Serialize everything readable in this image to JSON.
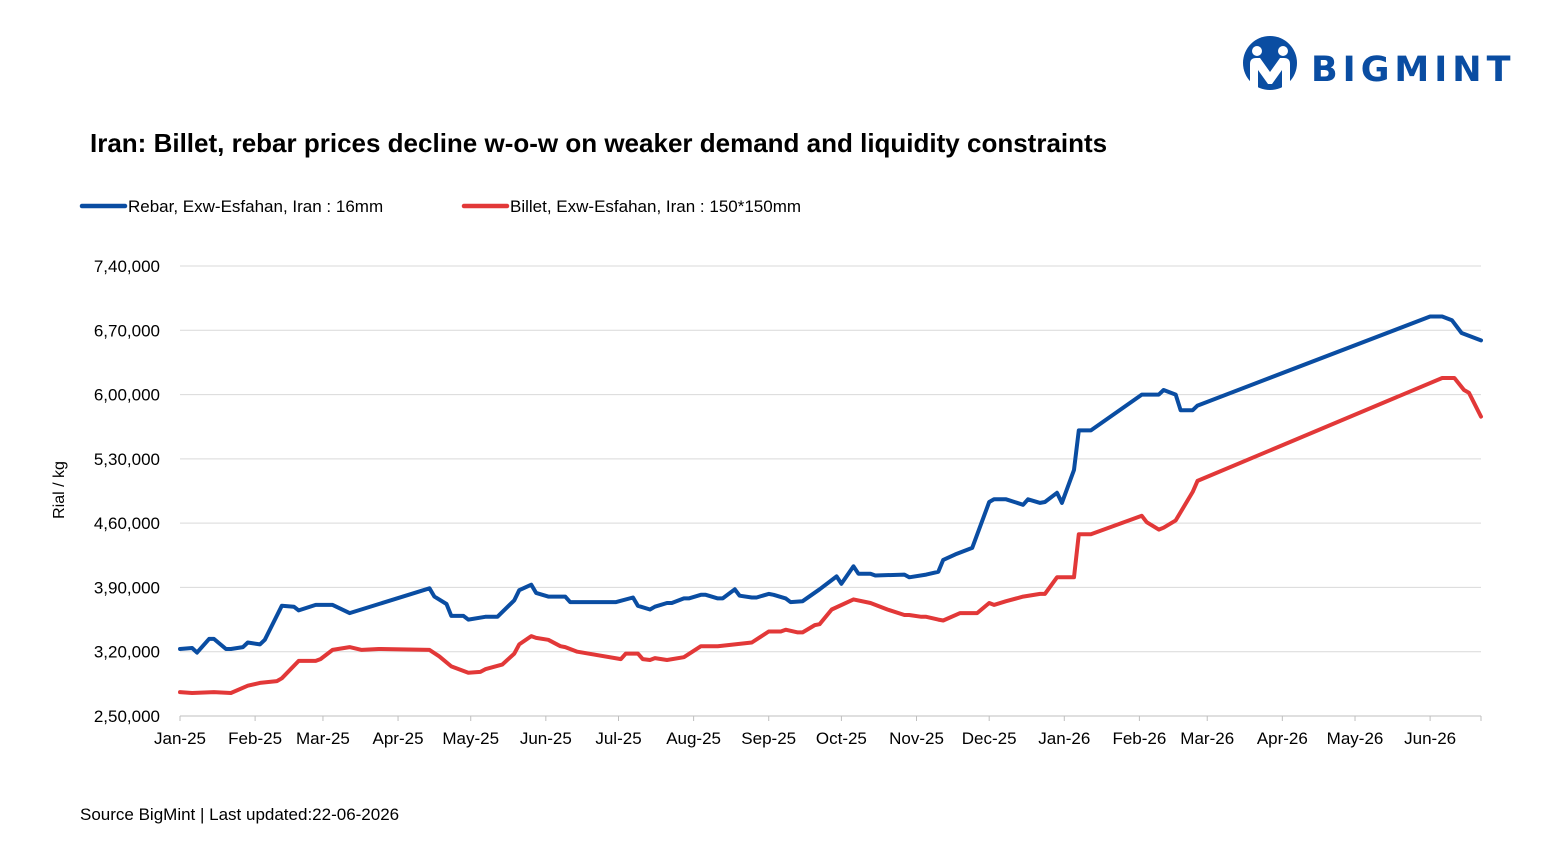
{
  "colors": {
    "rebar": "#0a4da2",
    "billet": "#e23838",
    "brand": "#0a4da2",
    "grid": "#d9d9d9",
    "axis": "#bfbfbf"
  },
  "brand": {
    "name": "BIGMINT",
    "logo_icon": "bigmint-logo-icon"
  },
  "source": "Source BigMint | Last updated:22-06-2026",
  "chart_data": {
    "type": "line",
    "title": "Iran: Billet, rebar prices decline w-o-w on weaker demand and liquidity constraints",
    "xlabel": "",
    "ylabel": "Rial / kg",
    "ylim": [
      250000,
      740000
    ],
    "yticks": [
      250000,
      320000,
      390000,
      460000,
      530000,
      600000,
      670000,
      740000
    ],
    "ytick_labels": [
      "2,50,000",
      "3,20,000",
      "3,90,000",
      "4,60,000",
      "5,30,000",
      "6,00,000",
      "6,70,000",
      "7,40,000"
    ],
    "xlim": [
      "2025-01-01",
      "2026-06-22"
    ],
    "xticks": [
      "2025-01-01",
      "2025-02-01",
      "2025-03-01",
      "2025-04-01",
      "2025-05-01",
      "2025-06-01",
      "2025-07-01",
      "2025-08-01",
      "2025-09-01",
      "2025-10-01",
      "2025-11-01",
      "2025-12-01",
      "2026-01-01",
      "2026-02-01",
      "2026-03-01",
      "2026-04-01",
      "2026-05-01",
      "2026-06-01"
    ],
    "xtick_labels": [
      "Jan-25",
      "Feb-25",
      "Mar-25",
      "Apr-25",
      "May-25",
      "Jun-25",
      "Jul-25",
      "Aug-25",
      "Sep-25",
      "Oct-25",
      "Nov-25",
      "Dec-25",
      "Jan-26",
      "Feb-26",
      "Mar-26",
      "Apr-26",
      "May-26",
      "Jun-26"
    ],
    "grid": "horizontal",
    "legend": "top-left",
    "series": [
      {
        "name": "Rebar, Exw-Esfahan, Iran : 16mm",
        "color": "#0a4da2",
        "points": [
          [
            "2025-01-01",
            323000
          ],
          [
            "2025-01-06",
            324000
          ],
          [
            "2025-01-08",
            319000
          ],
          [
            "2025-01-13",
            334000
          ],
          [
            "2025-01-15",
            334000
          ],
          [
            "2025-01-20",
            323000
          ],
          [
            "2025-01-22",
            323000
          ],
          [
            "2025-01-27",
            325000
          ],
          [
            "2025-01-29",
            330000
          ],
          [
            "2025-02-03",
            328000
          ],
          [
            "2025-02-05",
            333000
          ],
          [
            "2025-02-12",
            370000
          ],
          [
            "2025-02-17",
            369000
          ],
          [
            "2025-02-19",
            365000
          ],
          [
            "2025-02-26",
            371000
          ],
          [
            "2025-03-05",
            371000
          ],
          [
            "2025-03-12",
            362000
          ],
          [
            "2025-04-14",
            389000
          ],
          [
            "2025-04-16",
            380000
          ],
          [
            "2025-04-21",
            372000
          ],
          [
            "2025-04-23",
            359000
          ],
          [
            "2025-04-28",
            359000
          ],
          [
            "2025-04-30",
            355000
          ],
          [
            "2025-05-07",
            358000
          ],
          [
            "2025-05-12",
            358000
          ],
          [
            "2025-05-19",
            376000
          ],
          [
            "2025-05-21",
            387000
          ],
          [
            "2025-05-26",
            393000
          ],
          [
            "2025-05-28",
            384000
          ],
          [
            "2025-06-02",
            380000
          ],
          [
            "2025-06-09",
            380000
          ],
          [
            "2025-06-11",
            374000
          ],
          [
            "2025-06-30",
            374000
          ],
          [
            "2025-07-07",
            379000
          ],
          [
            "2025-07-09",
            370000
          ],
          [
            "2025-07-14",
            366000
          ],
          [
            "2025-07-16",
            369000
          ],
          [
            "2025-07-21",
            373000
          ],
          [
            "2025-07-23",
            373000
          ],
          [
            "2025-07-28",
            378000
          ],
          [
            "2025-07-30",
            378000
          ],
          [
            "2025-08-04",
            382000
          ],
          [
            "2025-08-06",
            382000
          ],
          [
            "2025-08-11",
            378000
          ],
          [
            "2025-08-13",
            378000
          ],
          [
            "2025-08-18",
            388000
          ],
          [
            "2025-08-20",
            381000
          ],
          [
            "2025-08-25",
            379000
          ],
          [
            "2025-08-27",
            379000
          ],
          [
            "2025-09-01",
            383000
          ],
          [
            "2025-09-03",
            382000
          ],
          [
            "2025-09-08",
            378000
          ],
          [
            "2025-09-10",
            374000
          ],
          [
            "2025-09-15",
            375000
          ],
          [
            "2025-09-22",
            388000
          ],
          [
            "2025-09-27",
            398000
          ],
          [
            "2025-09-29",
            402000
          ],
          [
            "2025-10-01",
            394000
          ],
          [
            "2025-10-06",
            413000
          ],
          [
            "2025-10-08",
            405000
          ],
          [
            "2025-10-13",
            405000
          ],
          [
            "2025-10-15",
            403000
          ],
          [
            "2025-10-27",
            404000
          ],
          [
            "2025-10-29",
            401000
          ],
          [
            "2025-11-05",
            404000
          ],
          [
            "2025-11-10",
            407000
          ],
          [
            "2025-11-12",
            420000
          ],
          [
            "2025-11-17",
            426000
          ],
          [
            "2025-11-24",
            433000
          ],
          [
            "2025-12-01",
            483000
          ],
          [
            "2025-12-03",
            486000
          ],
          [
            "2025-12-08",
            486000
          ],
          [
            "2025-12-15",
            480000
          ],
          [
            "2025-12-17",
            486000
          ],
          [
            "2025-12-22",
            482000
          ],
          [
            "2025-12-24",
            483000
          ],
          [
            "2025-12-29",
            493000
          ],
          [
            "2025-12-31",
            482000
          ],
          [
            "2026-01-05",
            518000
          ],
          [
            "2026-01-07",
            561000
          ],
          [
            "2026-01-12",
            561000
          ],
          [
            "2026-02-02",
            600000
          ],
          [
            "2026-02-09",
            600000
          ],
          [
            "2026-02-11",
            605000
          ],
          [
            "2026-02-16",
            600000
          ],
          [
            "2026-02-18",
            583000
          ],
          [
            "2026-02-23",
            583000
          ],
          [
            "2026-02-25",
            588000
          ],
          [
            "2026-06-01",
            685000
          ],
          [
            "2026-06-06",
            685000
          ],
          [
            "2026-06-10",
            681000
          ],
          [
            "2026-06-14",
            667000
          ],
          [
            "2026-06-22",
            659000
          ]
        ]
      },
      {
        "name": "Billet, Exw-Esfahan, Iran : 150*150mm",
        "color": "#e23838",
        "points": [
          [
            "2025-01-01",
            276000
          ],
          [
            "2025-01-06",
            275000
          ],
          [
            "2025-01-15",
            276000
          ],
          [
            "2025-01-22",
            275000
          ],
          [
            "2025-01-29",
            283000
          ],
          [
            "2025-02-03",
            286000
          ],
          [
            "2025-02-10",
            288000
          ],
          [
            "2025-02-12",
            291000
          ],
          [
            "2025-02-19",
            310000
          ],
          [
            "2025-02-26",
            310000
          ],
          [
            "2025-02-28",
            312000
          ],
          [
            "2025-03-05",
            322000
          ],
          [
            "2025-03-12",
            325000
          ],
          [
            "2025-03-17",
            322000
          ],
          [
            "2025-03-24",
            323000
          ],
          [
            "2025-04-14",
            322000
          ],
          [
            "2025-04-18",
            315000
          ],
          [
            "2025-04-23",
            304000
          ],
          [
            "2025-04-30",
            297000
          ],
          [
            "2025-05-05",
            298000
          ],
          [
            "2025-05-07",
            301000
          ],
          [
            "2025-05-14",
            306000
          ],
          [
            "2025-05-19",
            318000
          ],
          [
            "2025-05-21",
            328000
          ],
          [
            "2025-05-26",
            337000
          ],
          [
            "2025-05-28",
            335000
          ],
          [
            "2025-06-02",
            333000
          ],
          [
            "2025-06-07",
            326000
          ],
          [
            "2025-06-09",
            325000
          ],
          [
            "2025-06-14",
            320000
          ],
          [
            "2025-07-02",
            312000
          ],
          [
            "2025-07-04",
            318000
          ],
          [
            "2025-07-09",
            318000
          ],
          [
            "2025-07-11",
            312000
          ],
          [
            "2025-07-14",
            311000
          ],
          [
            "2025-07-16",
            313000
          ],
          [
            "2025-07-21",
            311000
          ],
          [
            "2025-07-28",
            314000
          ],
          [
            "2025-08-04",
            326000
          ],
          [
            "2025-08-11",
            326000
          ],
          [
            "2025-08-18",
            328000
          ],
          [
            "2025-08-25",
            330000
          ],
          [
            "2025-09-01",
            342000
          ],
          [
            "2025-09-06",
            342000
          ],
          [
            "2025-09-08",
            344000
          ],
          [
            "2025-09-13",
            341000
          ],
          [
            "2025-09-15",
            341000
          ],
          [
            "2025-09-20",
            349000
          ],
          [
            "2025-09-22",
            350000
          ],
          [
            "2025-09-27",
            366000
          ],
          [
            "2025-10-06",
            377000
          ],
          [
            "2025-10-13",
            373000
          ],
          [
            "2025-10-20",
            366000
          ],
          [
            "2025-10-27",
            360000
          ],
          [
            "2025-10-29",
            360000
          ],
          [
            "2025-11-03",
            358000
          ],
          [
            "2025-11-05",
            358000
          ],
          [
            "2025-11-10",
            355000
          ],
          [
            "2025-11-12",
            354000
          ],
          [
            "2025-11-19",
            362000
          ],
          [
            "2025-11-24",
            362000
          ],
          [
            "2025-11-26",
            362000
          ],
          [
            "2025-12-01",
            373000
          ],
          [
            "2025-12-03",
            371000
          ],
          [
            "2025-12-08",
            375000
          ],
          [
            "2025-12-15",
            380000
          ],
          [
            "2025-12-22",
            383000
          ],
          [
            "2025-12-24",
            383000
          ],
          [
            "2025-12-29",
            401000
          ],
          [
            "2026-01-05",
            401000
          ],
          [
            "2026-01-07",
            448000
          ],
          [
            "2026-01-12",
            448000
          ],
          [
            "2026-02-02",
            468000
          ],
          [
            "2026-02-04",
            461000
          ],
          [
            "2026-02-09",
            453000
          ],
          [
            "2026-02-11",
            455000
          ],
          [
            "2026-02-16",
            463000
          ],
          [
            "2026-02-23",
            494000
          ],
          [
            "2026-02-25",
            506000
          ],
          [
            "2026-06-06",
            618000
          ],
          [
            "2026-06-11",
            618000
          ],
          [
            "2026-06-15",
            605000
          ],
          [
            "2026-06-17",
            602000
          ],
          [
            "2026-06-22",
            576000
          ]
        ]
      }
    ]
  }
}
